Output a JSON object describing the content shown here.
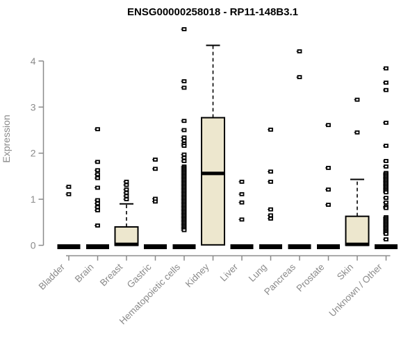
{
  "colors": {
    "background": "#FFFFFF",
    "box_fill": "#EDE7CE",
    "box_border": "#000000",
    "median": "#000000",
    "outlier": "#000000",
    "axis": "#8A8A8A",
    "tick_text": "#8A8A8A",
    "title_text": "#000000"
  },
  "chart_data": {
    "type": "boxplot",
    "title": "ENSG00000258018 - RP11-148B3.1",
    "xlabel": "",
    "ylabel": "Expression",
    "ylim": [
      0,
      4.8
    ],
    "yticks": [
      0,
      1,
      2,
      3,
      4
    ],
    "grid": false,
    "legend": false,
    "categories": [
      "Bladder",
      "Brain",
      "Breast",
      "Gastric",
      "Hematopoietic cells",
      "Kidney",
      "Liver",
      "Lung",
      "Pancreas",
      "Prostate",
      "Skin",
      "Unknown / Other"
    ],
    "series": [
      {
        "name": "Bladder",
        "q1": 0,
        "median": 0,
        "q3": 0,
        "whisker_low": 0,
        "whisker_high": 0,
        "outliers": [
          1.27,
          1.11
        ]
      },
      {
        "name": "Brain",
        "q1": 0,
        "median": 0,
        "q3": 0,
        "whisker_low": 0,
        "whisker_high": 0,
        "outliers": [
          2.52,
          1.81,
          1.63,
          1.54,
          1.46,
          1.25,
          0.98,
          0.91,
          0.83,
          0.76,
          0.43
        ]
      },
      {
        "name": "Breast",
        "q1": 0,
        "median": 0.02,
        "q3": 0.4,
        "whisker_low": 0,
        "whisker_high": 0.9,
        "outliers": [
          1.38,
          1.31,
          1.21,
          1.14,
          1.07,
          1.0
        ]
      },
      {
        "name": "Gastric",
        "q1": 0,
        "median": 0,
        "q3": 0,
        "whisker_low": 0,
        "whisker_high": 0,
        "outliers": [
          1.86,
          1.66,
          1.01,
          0.95
        ]
      },
      {
        "name": "Hematopoietic cells",
        "q1": 0,
        "median": 0,
        "q3": 0,
        "whisker_low": 0,
        "whisker_high": 0,
        "outliers": [
          4.69,
          3.56,
          3.42,
          2.7,
          2.5,
          2.34,
          2.27,
          2.2,
          2.16,
          1.97,
          1.9,
          1.83,
          1.71,
          1.68,
          1.65,
          1.62,
          1.59,
          1.56,
          1.53,
          1.5,
          1.47,
          1.44,
          1.41,
          1.38,
          1.35,
          1.32,
          1.29,
          1.26,
          1.23,
          1.2,
          1.17,
          1.14,
          1.11,
          1.08,
          1.05,
          1.02,
          0.99,
          0.96,
          0.93,
          0.9,
          0.87,
          0.84,
          0.81,
          0.78,
          0.75,
          0.72,
          0.69,
          0.66,
          0.63,
          0.6,
          0.57,
          0.54,
          0.51,
          0.48,
          0.45,
          0.42,
          0.39,
          0.36,
          0.33
        ]
      },
      {
        "name": "Kidney",
        "q1": 0.01,
        "median": 1.56,
        "q3": 2.77,
        "whisker_low": 0,
        "whisker_high": 4.34,
        "outliers": []
      },
      {
        "name": "Liver",
        "q1": 0,
        "median": 0,
        "q3": 0,
        "whisker_low": 0,
        "whisker_high": 0,
        "outliers": [
          1.38,
          1.11,
          0.93,
          0.56
        ]
      },
      {
        "name": "Lung",
        "q1": 0,
        "median": 0,
        "q3": 0,
        "whisker_low": 0,
        "whisker_high": 0,
        "outliers": [
          2.51,
          1.6,
          1.38,
          0.78,
          0.65,
          0.58
        ]
      },
      {
        "name": "Pancreas",
        "q1": 0,
        "median": 0,
        "q3": 0,
        "whisker_low": 0,
        "whisker_high": 0,
        "outliers": [
          4.21,
          3.65
        ]
      },
      {
        "name": "Prostate",
        "q1": 0,
        "median": 0,
        "q3": 0,
        "whisker_low": 0,
        "whisker_high": 0,
        "outliers": [
          2.61,
          1.68,
          1.21,
          0.88
        ]
      },
      {
        "name": "Skin",
        "q1": 0,
        "median": 0.02,
        "q3": 0.63,
        "whisker_low": 0,
        "whisker_high": 1.43,
        "outliers": [
          3.16,
          2.45
        ]
      },
      {
        "name": "Unknown / Other",
        "q1": 0,
        "median": 0,
        "q3": 0,
        "whisker_low": 0,
        "whisker_high": 0,
        "outliers": [
          3.84,
          3.53,
          3.37,
          2.66,
          2.16,
          1.83,
          1.71,
          1.57,
          1.54,
          1.51,
          1.48,
          1.45,
          1.42,
          1.39,
          1.36,
          1.33,
          1.3,
          1.27,
          1.24,
          1.21,
          1.18,
          1.15,
          1.03,
          0.93,
          0.84,
          0.81,
          0.61,
          0.58,
          0.55,
          0.52,
          0.49,
          0.46,
          0.43,
          0.4,
          0.37,
          0.34,
          0.31,
          0.28,
          0.25,
          0.13
        ]
      }
    ]
  }
}
